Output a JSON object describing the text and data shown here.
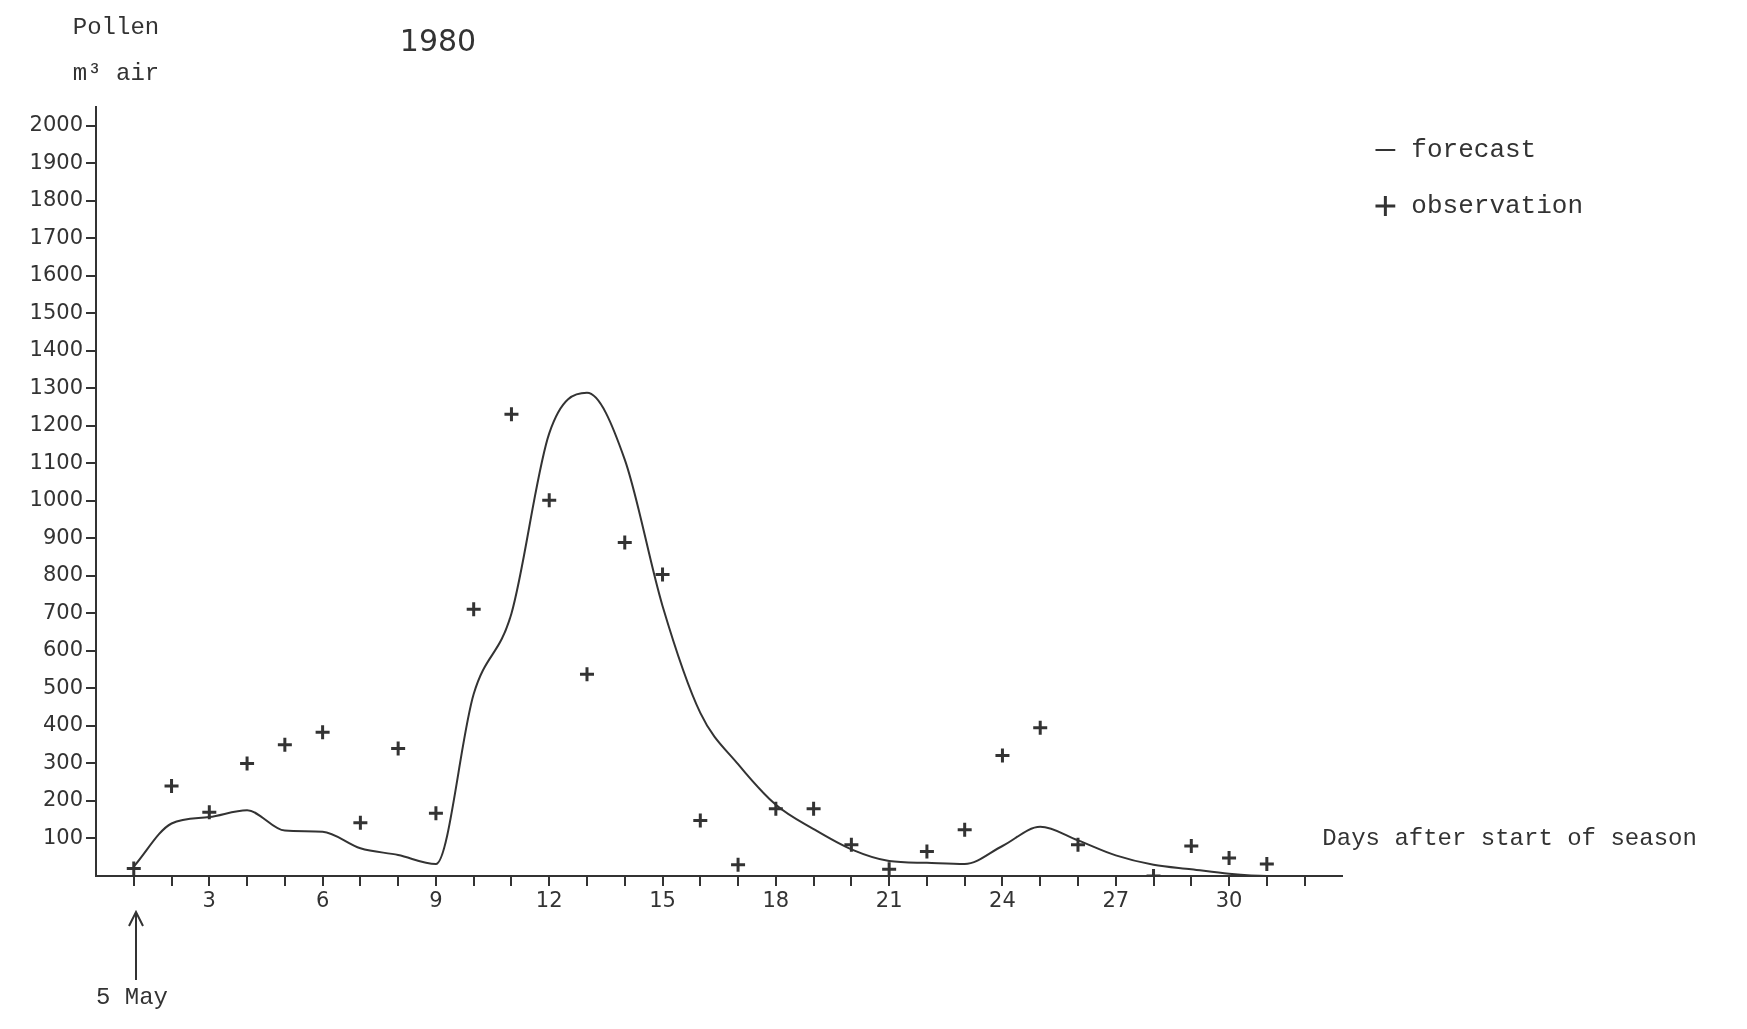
{
  "chart_data": {
    "type": "line",
    "title": "1980",
    "ylabel": "Pollen\nm³ air",
    "xlabel": "Days after start of season",
    "xlim": [
      0,
      33
    ],
    "ylim": [
      0,
      2050
    ],
    "xticks": [
      {
        "value": 1,
        "label": null
      },
      {
        "value": 2,
        "label": null
      },
      3,
      {
        "value": 4,
        "label": null
      },
      {
        "value": 5,
        "label": null
      },
      6,
      {
        "value": 7,
        "label": null
      },
      {
        "value": 8,
        "label": null
      },
      9,
      {
        "value": 10,
        "label": null
      },
      {
        "value": 11,
        "label": null
      },
      12,
      {
        "value": 13,
        "label": null
      },
      {
        "value": 14,
        "label": null
      },
      15,
      {
        "value": 16,
        "label": null
      },
      {
        "value": 17,
        "label": null
      },
      18,
      {
        "value": 19,
        "label": null
      },
      {
        "value": 20,
        "label": null
      },
      21,
      {
        "value": 22,
        "label": null
      },
      {
        "value": 23,
        "label": null
      },
      24,
      {
        "value": 25,
        "label": null
      },
      {
        "value": 26,
        "label": null
      },
      27,
      {
        "value": 28,
        "label": null
      },
      {
        "value": 29,
        "label": null
      },
      30,
      {
        "value": 31,
        "label": null
      },
      {
        "value": 32,
        "label": null
      }
    ],
    "yticks": [
      100,
      200,
      300,
      400,
      500,
      600,
      700,
      800,
      900,
      1000,
      1100,
      1200,
      1300,
      1400,
      1500,
      1600,
      1700,
      1800,
      1900,
      2000
    ],
    "grid": false,
    "legend": "top right",
    "line_style": "solid",
    "series": [
      {
        "name": "forecast",
        "marker": "none",
        "color": "#333333",
        "x": [
          1,
          2,
          3,
          4,
          5,
          6,
          7,
          8,
          9,
          10,
          11,
          12,
          13,
          14,
          15,
          16,
          17,
          18,
          19,
          20,
          21,
          22,
          23,
          24,
          25,
          26,
          27,
          28,
          29,
          30,
          31,
          32,
          33
        ],
        "values": [
          25,
          140,
          157,
          175,
          121,
          118,
          74,
          56,
          32,
          485,
          700,
          1180,
          1288,
          1110,
          720,
          435,
          298,
          190,
          125,
          71,
          40,
          35,
          32,
          80,
          131,
          95,
          55,
          30,
          18,
          6,
          0,
          0,
          0
        ]
      },
      {
        "name": "observation",
        "type": "scatter",
        "marker": "cross",
        "color": "#333333",
        "x": [
          1,
          2,
          3,
          4,
          5,
          6,
          7,
          8,
          9,
          10,
          11,
          12,
          13,
          14,
          15,
          16,
          17,
          18,
          19,
          20,
          21,
          22,
          23,
          24,
          25,
          26,
          28,
          29,
          30,
          31
        ],
        "values": [
          20,
          240,
          170,
          300,
          350,
          383,
          142,
          340,
          167,
          711,
          1231,
          1002,
          538,
          889,
          804,
          148,
          30,
          179,
          179,
          83,
          18,
          65,
          123,
          321,
          395,
          83,
          0,
          80,
          48,
          32
        ]
      }
    ],
    "annotations": [
      "5 May"
    ]
  }
}
